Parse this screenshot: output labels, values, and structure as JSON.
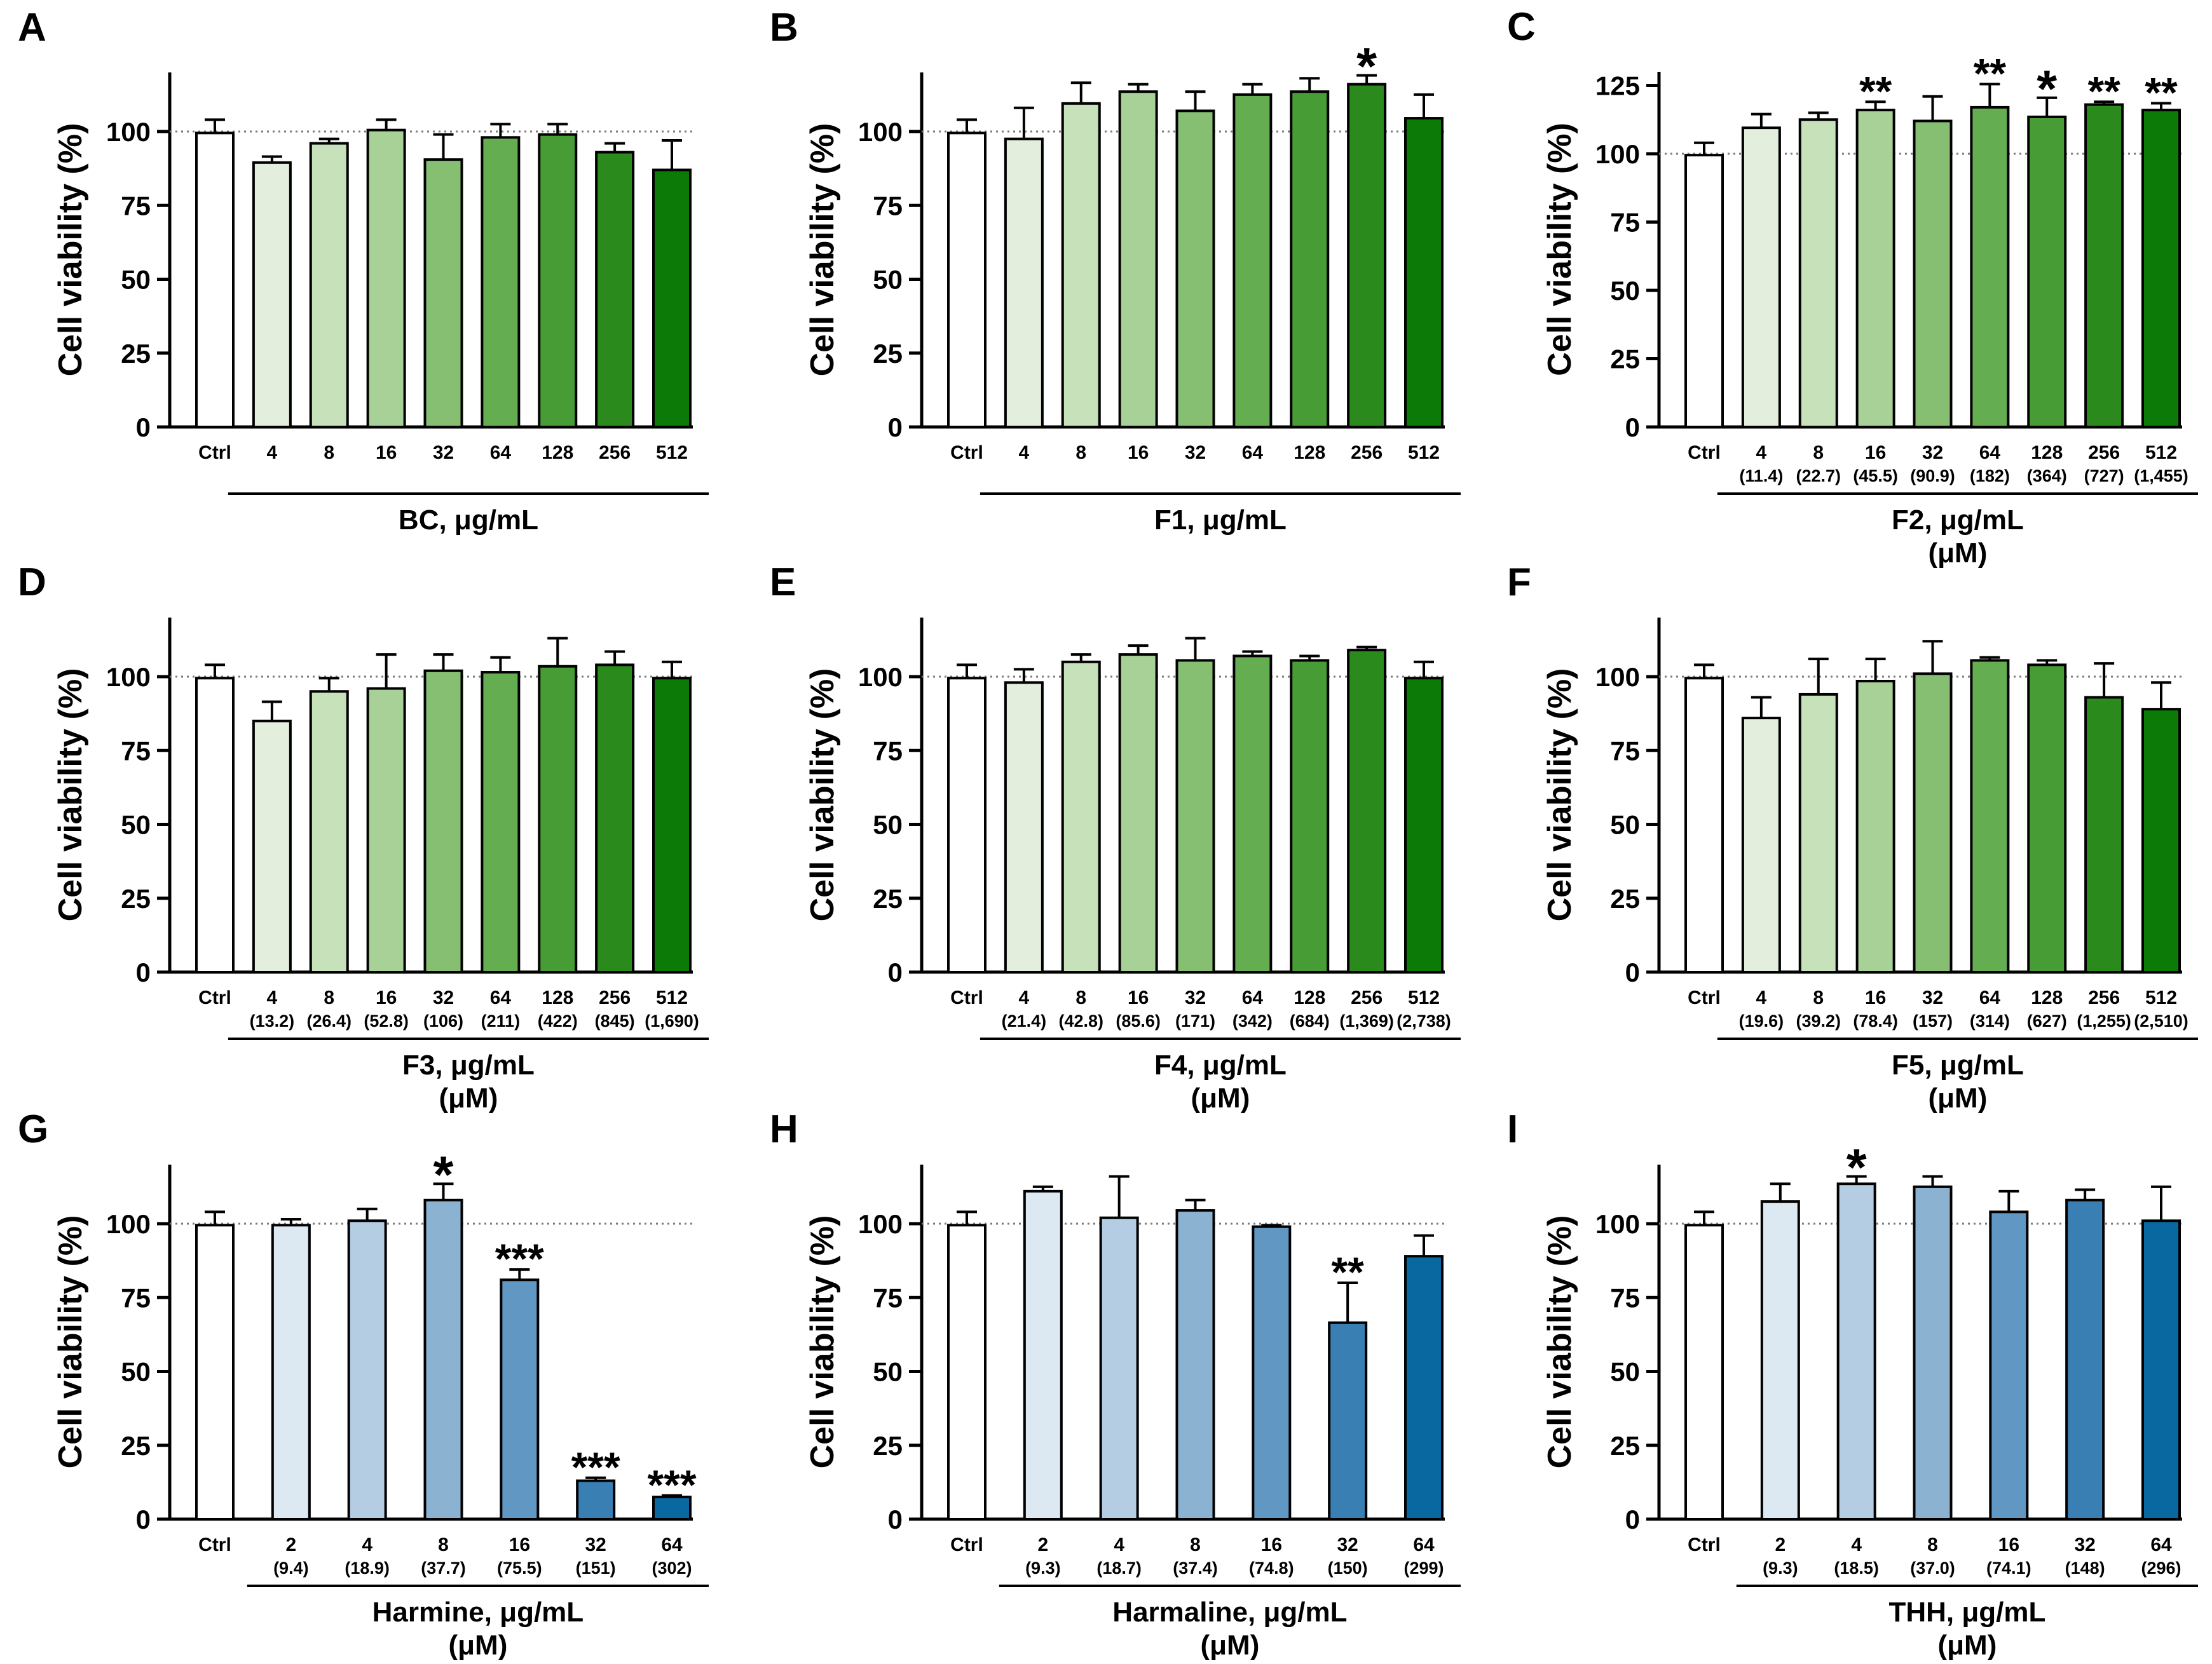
{
  "figure_title": "",
  "chart_data": [
    {
      "letter": "A",
      "type": "bar",
      "title": "",
      "ylabel": "Cell viability (%)",
      "ylim": [
        0,
        120
      ],
      "yticks": [
        0,
        25,
        50,
        75,
        100
      ],
      "ref_line": 100,
      "palette": "green",
      "categories": [
        "Ctrl",
        "4",
        "8",
        "16",
        "32",
        "64",
        "128",
        "256",
        "512"
      ],
      "sublabels": [],
      "values": [
        99.5,
        89.5,
        96,
        100.5,
        90.5,
        98,
        99,
        93,
        87
      ],
      "errors": [
        4.5,
        2,
        1.5,
        3.5,
        8.5,
        4.5,
        3.5,
        3,
        10
      ],
      "sig": [
        "",
        "",
        "",
        "",
        "",
        "",
        "",
        "",
        ""
      ],
      "xlabel": "BC, μg/mL",
      "xlabel2": ""
    },
    {
      "letter": "B",
      "type": "bar",
      "title": "",
      "ylabel": "Cell viability (%)",
      "ylim": [
        0,
        120
      ],
      "yticks": [
        0,
        25,
        50,
        75,
        100
      ],
      "ref_line": 100,
      "palette": "green",
      "categories": [
        "Ctrl",
        "4",
        "8",
        "16",
        "32",
        "64",
        "128",
        "256",
        "512"
      ],
      "sublabels": [],
      "values": [
        99.5,
        97.5,
        109.5,
        113.5,
        107,
        112.5,
        113.5,
        116,
        104.5
      ],
      "errors": [
        4.5,
        10.5,
        7,
        2.5,
        6.5,
        3.5,
        4.5,
        3,
        8
      ],
      "sig": [
        "",
        "",
        "",
        "",
        "",
        "",
        "",
        "*",
        ""
      ],
      "xlabel": "F1, μg/mL",
      "xlabel2": ""
    },
    {
      "letter": "C",
      "type": "bar",
      "title": "",
      "ylabel": "Cell viability (%)",
      "ylim": [
        0,
        130
      ],
      "yticks": [
        0,
        25,
        50,
        75,
        100,
        125
      ],
      "ref_line": 100,
      "palette": "green",
      "categories": [
        "Ctrl",
        "4",
        "8",
        "16",
        "32",
        "64",
        "128",
        "256",
        "512"
      ],
      "sublabels": [
        "",
        "(11.4)",
        "(22.7)",
        "(45.5)",
        "(90.9)",
        "(182)",
        "(364)",
        "(727)",
        "(1,455)"
      ],
      "values": [
        99.5,
        109.5,
        112.5,
        116,
        112,
        117,
        113.5,
        118,
        116
      ],
      "errors": [
        4.5,
        5,
        2.5,
        3,
        9,
        8.5,
        7,
        1,
        2.5
      ],
      "sig": [
        "",
        "",
        "",
        "**",
        "",
        "**",
        "*",
        "**",
        "**"
      ],
      "xlabel": "F2, μg/mL",
      "xlabel2": "(μM)"
    },
    {
      "letter": "D",
      "type": "bar",
      "title": "",
      "ylabel": "Cell viability (%)",
      "ylim": [
        0,
        120
      ],
      "yticks": [
        0,
        25,
        50,
        75,
        100
      ],
      "ref_line": 100,
      "palette": "green",
      "categories": [
        "Ctrl",
        "4",
        "8",
        "16",
        "32",
        "64",
        "128",
        "256",
        "512"
      ],
      "sublabels": [
        "",
        "(13.2)",
        "(26.4)",
        "(52.8)",
        "(106)",
        "(211)",
        "(422)",
        "(845)",
        "(1,690)"
      ],
      "values": [
        99.5,
        85,
        95,
        96,
        102,
        101.5,
        103.5,
        104,
        99.5
      ],
      "errors": [
        4.5,
        6.5,
        4.5,
        11.5,
        5.5,
        5,
        9.5,
        4.5,
        5.5
      ],
      "sig": [
        "",
        "",
        "",
        "",
        "",
        "",
        "",
        "",
        ""
      ],
      "xlabel": "F3, μg/mL",
      "xlabel2": "(μM)"
    },
    {
      "letter": "E",
      "type": "bar",
      "title": "",
      "ylabel": "Cell viability (%)",
      "ylim": [
        0,
        120
      ],
      "yticks": [
        0,
        25,
        50,
        75,
        100
      ],
      "ref_line": 100,
      "palette": "green",
      "categories": [
        "Ctrl",
        "4",
        "8",
        "16",
        "32",
        "64",
        "128",
        "256",
        "512"
      ],
      "sublabels": [
        "",
        "(21.4)",
        "(42.8)",
        "(85.6)",
        "(171)",
        "(342)",
        "(684)",
        "(1,369)",
        "(2,738)"
      ],
      "values": [
        99.5,
        98,
        105,
        107.5,
        105.5,
        107,
        105.5,
        109,
        99.5
      ],
      "errors": [
        4.5,
        4.5,
        2.5,
        3,
        7.5,
        1.5,
        1.5,
        1,
        5.5
      ],
      "sig": [
        "",
        "",
        "",
        "",
        "",
        "",
        "",
        "",
        ""
      ],
      "xlabel": "F4, μg/mL",
      "xlabel2": "(μM)"
    },
    {
      "letter": "F",
      "type": "bar",
      "title": "",
      "ylabel": "Cell viability (%)",
      "ylim": [
        0,
        120
      ],
      "yticks": [
        0,
        25,
        50,
        75,
        100
      ],
      "ref_line": 100,
      "palette": "green",
      "categories": [
        "Ctrl",
        "4",
        "8",
        "16",
        "32",
        "64",
        "128",
        "256",
        "512"
      ],
      "sublabels": [
        "",
        "(19.6)",
        "(39.2)",
        "(78.4)",
        "(157)",
        "(314)",
        "(627)",
        "(1,255)",
        "(2,510)"
      ],
      "values": [
        99.5,
        86,
        94,
        98.5,
        101,
        105.5,
        104,
        93,
        89
      ],
      "errors": [
        4.5,
        7,
        12,
        7.5,
        11,
        1,
        1.5,
        11.5,
        9
      ],
      "sig": [
        "",
        "",
        "",
        "",
        "",
        "",
        "",
        "",
        ""
      ],
      "xlabel": "F5, μg/mL",
      "xlabel2": "(μM)"
    },
    {
      "letter": "G",
      "type": "bar",
      "title": "",
      "ylabel": "Cell viability (%)",
      "ylim": [
        0,
        120
      ],
      "yticks": [
        0,
        25,
        50,
        75,
        100
      ],
      "ref_line": 100,
      "palette": "blue",
      "categories": [
        "Ctrl",
        "2",
        "4",
        "8",
        "16",
        "32",
        "64"
      ],
      "sublabels": [
        "",
        "(9.4)",
        "(18.9)",
        "(37.7)",
        "(75.5)",
        "(151)",
        "(302)"
      ],
      "values": [
        99.5,
        99.5,
        101,
        108,
        81,
        13,
        7.5
      ],
      "errors": [
        4.5,
        2,
        4,
        5.5,
        3.5,
        1,
        0.5
      ],
      "sig": [
        "",
        "",
        "",
        "*",
        "***",
        "***",
        "***"
      ],
      "xlabel": "Harmine, μg/mL",
      "xlabel2": "(μM)"
    },
    {
      "letter": "H",
      "type": "bar",
      "title": "",
      "ylabel": "Cell viability (%)",
      "ylim": [
        0,
        120
      ],
      "yticks": [
        0,
        25,
        50,
        75,
        100
      ],
      "ref_line": 100,
      "palette": "blue",
      "categories": [
        "Ctrl",
        "2",
        "4",
        "8",
        "16",
        "32",
        "64"
      ],
      "sublabels": [
        "",
        "(9.3)",
        "(18.7)",
        "(37.4)",
        "(74.8)",
        "(150)",
        "(299)"
      ],
      "values": [
        99.5,
        111,
        102,
        104.5,
        99,
        66.5,
        89
      ],
      "errors": [
        4.5,
        1.5,
        14,
        3.5,
        0.5,
        13.5,
        7
      ],
      "sig": [
        "",
        "",
        "",
        "",
        "",
        "**",
        ""
      ],
      "xlabel": "Harmaline, μg/mL",
      "xlabel2": "(μM)"
    },
    {
      "letter": "I",
      "type": "bar",
      "title": "",
      "ylabel": "Cell viability (%)",
      "ylim": [
        0,
        120
      ],
      "yticks": [
        0,
        25,
        50,
        75,
        100
      ],
      "ref_line": 100,
      "palette": "blue",
      "categories": [
        "Ctrl",
        "2",
        "4",
        "8",
        "16",
        "32",
        "64"
      ],
      "sublabels": [
        "",
        "(9.3)",
        "(18.5)",
        "(37.0)",
        "(74.1)",
        "(148)",
        "(296)"
      ],
      "values": [
        99.5,
        107.5,
        113.5,
        112.5,
        104,
        108,
        101
      ],
      "errors": [
        4.5,
        6,
        2.5,
        3.5,
        7,
        3.5,
        11.5
      ],
      "sig": [
        "",
        "",
        "*",
        "",
        "",
        "",
        ""
      ],
      "xlabel": "THH, μg/mL",
      "xlabel2": "(μM)"
    }
  ],
  "colors": {
    "green": [
      "#ffffff",
      "#e3efdc",
      "#c7e1bb",
      "#a8d197",
      "#86bf72",
      "#65ad51",
      "#489c35",
      "#2a8a1b",
      "#0b7a06"
    ],
    "blue": [
      "#ffffff",
      "#dce8f2",
      "#b4cde3",
      "#8cb2d1",
      "#6098c3",
      "#3a7fb3",
      "#0a68a0"
    ],
    "stroke": "#000000",
    "refline": "#7a7a7a"
  }
}
